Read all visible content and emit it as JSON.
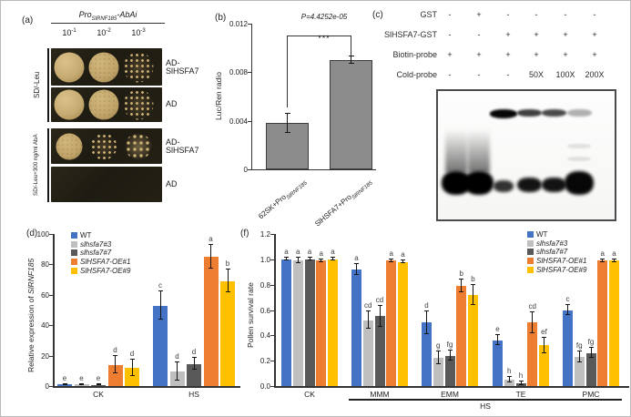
{
  "figure": {
    "panel_a": {
      "label": "(a)",
      "title": {
        "pro": "Pro",
        "sub": "SlRNF185",
        "suffix": "-AbAi"
      },
      "dilutions": [
        {
          "base": "10",
          "exp": "-1"
        },
        {
          "base": "10",
          "exp": "-2"
        },
        {
          "base": "10",
          "exp": "-3"
        }
      ],
      "groups": [
        {
          "label": "SD/-Leu",
          "rows": [
            {
              "label": "AD-SlHSFA7",
              "spots": [
                "solid",
                "dense",
                "patchy"
              ]
            },
            {
              "label": "AD",
              "spots": [
                "solid",
                "dense",
                "patchy"
              ]
            }
          ]
        },
        {
          "label": "SD/-Leu+300 ng/ml AbA",
          "rows": [
            {
              "label": "AD-SlHSFA7",
              "spots": [
                "dense",
                "patchy",
                "blob"
              ]
            },
            {
              "label": "AD",
              "spots": []
            }
          ]
        }
      ]
    },
    "panel_b": {
      "label": "(b)"
    },
    "panel_c": {
      "label": "(c)",
      "rows": [
        {
          "name": "GST",
          "values": [
            "-",
            "+",
            "-",
            "-",
            "-",
            "-"
          ]
        },
        {
          "name": "SlHSFA7-GST",
          "values": [
            "-",
            "-",
            "+",
            "+",
            "+",
            "+"
          ]
        },
        {
          "name": "Biotin-probe",
          "values": [
            "+",
            "+",
            "+",
            "+",
            "+",
            "+"
          ]
        },
        {
          "name": "Cold-probe",
          "values": [
            "-",
            "-",
            "-",
            "50X",
            "100X",
            "200X"
          ]
        }
      ],
      "gel": {
        "shift_bands": [
          {
            "lane": 3,
            "intensity": 0.97
          },
          {
            "lane": 4,
            "intensity": 0.75
          },
          {
            "lane": 5,
            "intensity": 0.7
          },
          {
            "lane": 6,
            "intensity": 0.3
          }
        ],
        "free_bands": [
          {
            "lane": 1,
            "intensity": 1.0,
            "size": "large"
          },
          {
            "lane": 2,
            "intensity": 1.0,
            "size": "large"
          },
          {
            "lane": 3,
            "intensity": 0.8,
            "size": "small"
          },
          {
            "lane": 4,
            "intensity": 0.92,
            "size": "medium"
          },
          {
            "lane": 5,
            "intensity": 0.92,
            "size": "medium"
          },
          {
            "lane": 6,
            "intensity": 0.97,
            "size": "large"
          }
        ]
      }
    },
    "panel_d": {
      "label": "(d)"
    },
    "panel_f": {
      "label": "(f)"
    }
  },
  "chart_data": [
    {
      "id": "panel-b",
      "type": "bar",
      "ylabel": "Luc/Ren radio",
      "ylim": [
        0,
        0.012
      ],
      "yticks": [
        "0",
        "0.004",
        "0.008",
        "0.012"
      ],
      "categories": [
        {
          "prefix": "62SK+Pro",
          "sub": "SlRNF185"
        },
        {
          "prefix": "SlHSFA7+Pro",
          "sub": "SlRNF185"
        }
      ],
      "values": [
        0.0038,
        0.009
      ],
      "errors": [
        0.0008,
        0.0003
      ],
      "bar_color": "#8c8c8c",
      "p_label": "P=4.4252e-05",
      "stars": "***"
    },
    {
      "id": "panel-d",
      "type": "bar",
      "ylabel_prefix": "Relative expression of ",
      "ylabel_gene": "SlRNF185",
      "ylim": [
        0,
        100
      ],
      "yticks": [
        "0",
        "20",
        "40",
        "60",
        "80",
        "100"
      ],
      "categories": [
        "CK",
        "HS"
      ],
      "legend_position": "top-left",
      "series": [
        {
          "name": "WT",
          "italic": false,
          "color": "#4472C4",
          "values": [
            1,
            53
          ],
          "errors": [
            0.5,
            9
          ],
          "letters": [
            "e",
            "c"
          ]
        },
        {
          "name": "slhsfa7#3",
          "italic": true,
          "color": "#BFBFBF",
          "values": [
            1,
            9.5
          ],
          "errors": [
            0.5,
            6
          ],
          "letters": [
            "e",
            "d"
          ]
        },
        {
          "name": "slhsfa7#7",
          "italic": true,
          "color": "#595959",
          "values": [
            0.8,
            14.5
          ],
          "errors": [
            0.4,
            4
          ],
          "letters": [
            "e",
            "d"
          ]
        },
        {
          "name": "SlHSFA7-OE#1",
          "italic": true,
          "color": "#ED7D31",
          "values": [
            14,
            85
          ],
          "errors": [
            5.5,
            8
          ],
          "letters": [
            "d",
            "a"
          ]
        },
        {
          "name": "SlHSFA7-OE#9",
          "italic": true,
          "color": "#FFC000",
          "values": [
            12,
            69
          ],
          "errors": [
            5.5,
            7.5
          ],
          "letters": [
            "d",
            "b"
          ]
        }
      ]
    },
    {
      "id": "panel-f",
      "type": "bar",
      "ylabel": "Pollen survival rate",
      "ylim": [
        0,
        1.2
      ],
      "yticks": [
        "0.0",
        "0.2",
        "0.4",
        "0.6",
        "0.8",
        "1.0",
        "1.2"
      ],
      "categories": [
        "CK",
        "MMM",
        "EMM",
        "TE",
        "PMC"
      ],
      "legend_position": "top-right",
      "hs_group": {
        "label": "HS",
        "from": 1,
        "to": 4
      },
      "series": [
        {
          "name": "WT",
          "italic": false,
          "color": "#4472C4",
          "values": [
            1.0,
            0.92,
            0.5,
            0.36,
            0.6
          ],
          "errors": [
            0.01,
            0.04,
            0.09,
            0.04,
            0.04
          ],
          "letters": [
            "a",
            "a",
            "d",
            "e",
            "c"
          ]
        },
        {
          "name": "slhsfa7#3",
          "italic": true,
          "color": "#BFBFBF",
          "values": [
            0.99,
            0.52,
            0.22,
            0.05,
            0.23
          ],
          "errors": [
            0.02,
            0.07,
            0.05,
            0.02,
            0.04
          ],
          "letters": [
            "a",
            "cd",
            "g",
            "h",
            "fg"
          ]
        },
        {
          "name": "slhsfa7#7",
          "italic": true,
          "color": "#595959",
          "values": [
            1.0,
            0.55,
            0.24,
            0.02,
            0.26
          ],
          "errors": [
            0.01,
            0.08,
            0.04,
            0.015,
            0.04
          ],
          "letters": [
            "a",
            "cd",
            "fg",
            "h",
            "fg"
          ]
        },
        {
          "name": "SlHSFA7-OE#1",
          "italic": true,
          "color": "#ED7D31",
          "values": [
            0.99,
            0.99,
            0.79,
            0.5,
            0.99
          ],
          "errors": [
            0.01,
            0.01,
            0.05,
            0.08,
            0.01
          ],
          "letters": [
            "a",
            "a",
            "b",
            "cd",
            "a"
          ]
        },
        {
          "name": "SlHSFA7-OE#9",
          "italic": true,
          "color": "#FFC000",
          "values": [
            1.0,
            0.98,
            0.72,
            0.32,
            0.99
          ],
          "errors": [
            0.01,
            0.01,
            0.08,
            0.06,
            0.01
          ],
          "letters": [
            "a",
            "a",
            "b",
            "ef",
            "a"
          ]
        }
      ]
    }
  ]
}
